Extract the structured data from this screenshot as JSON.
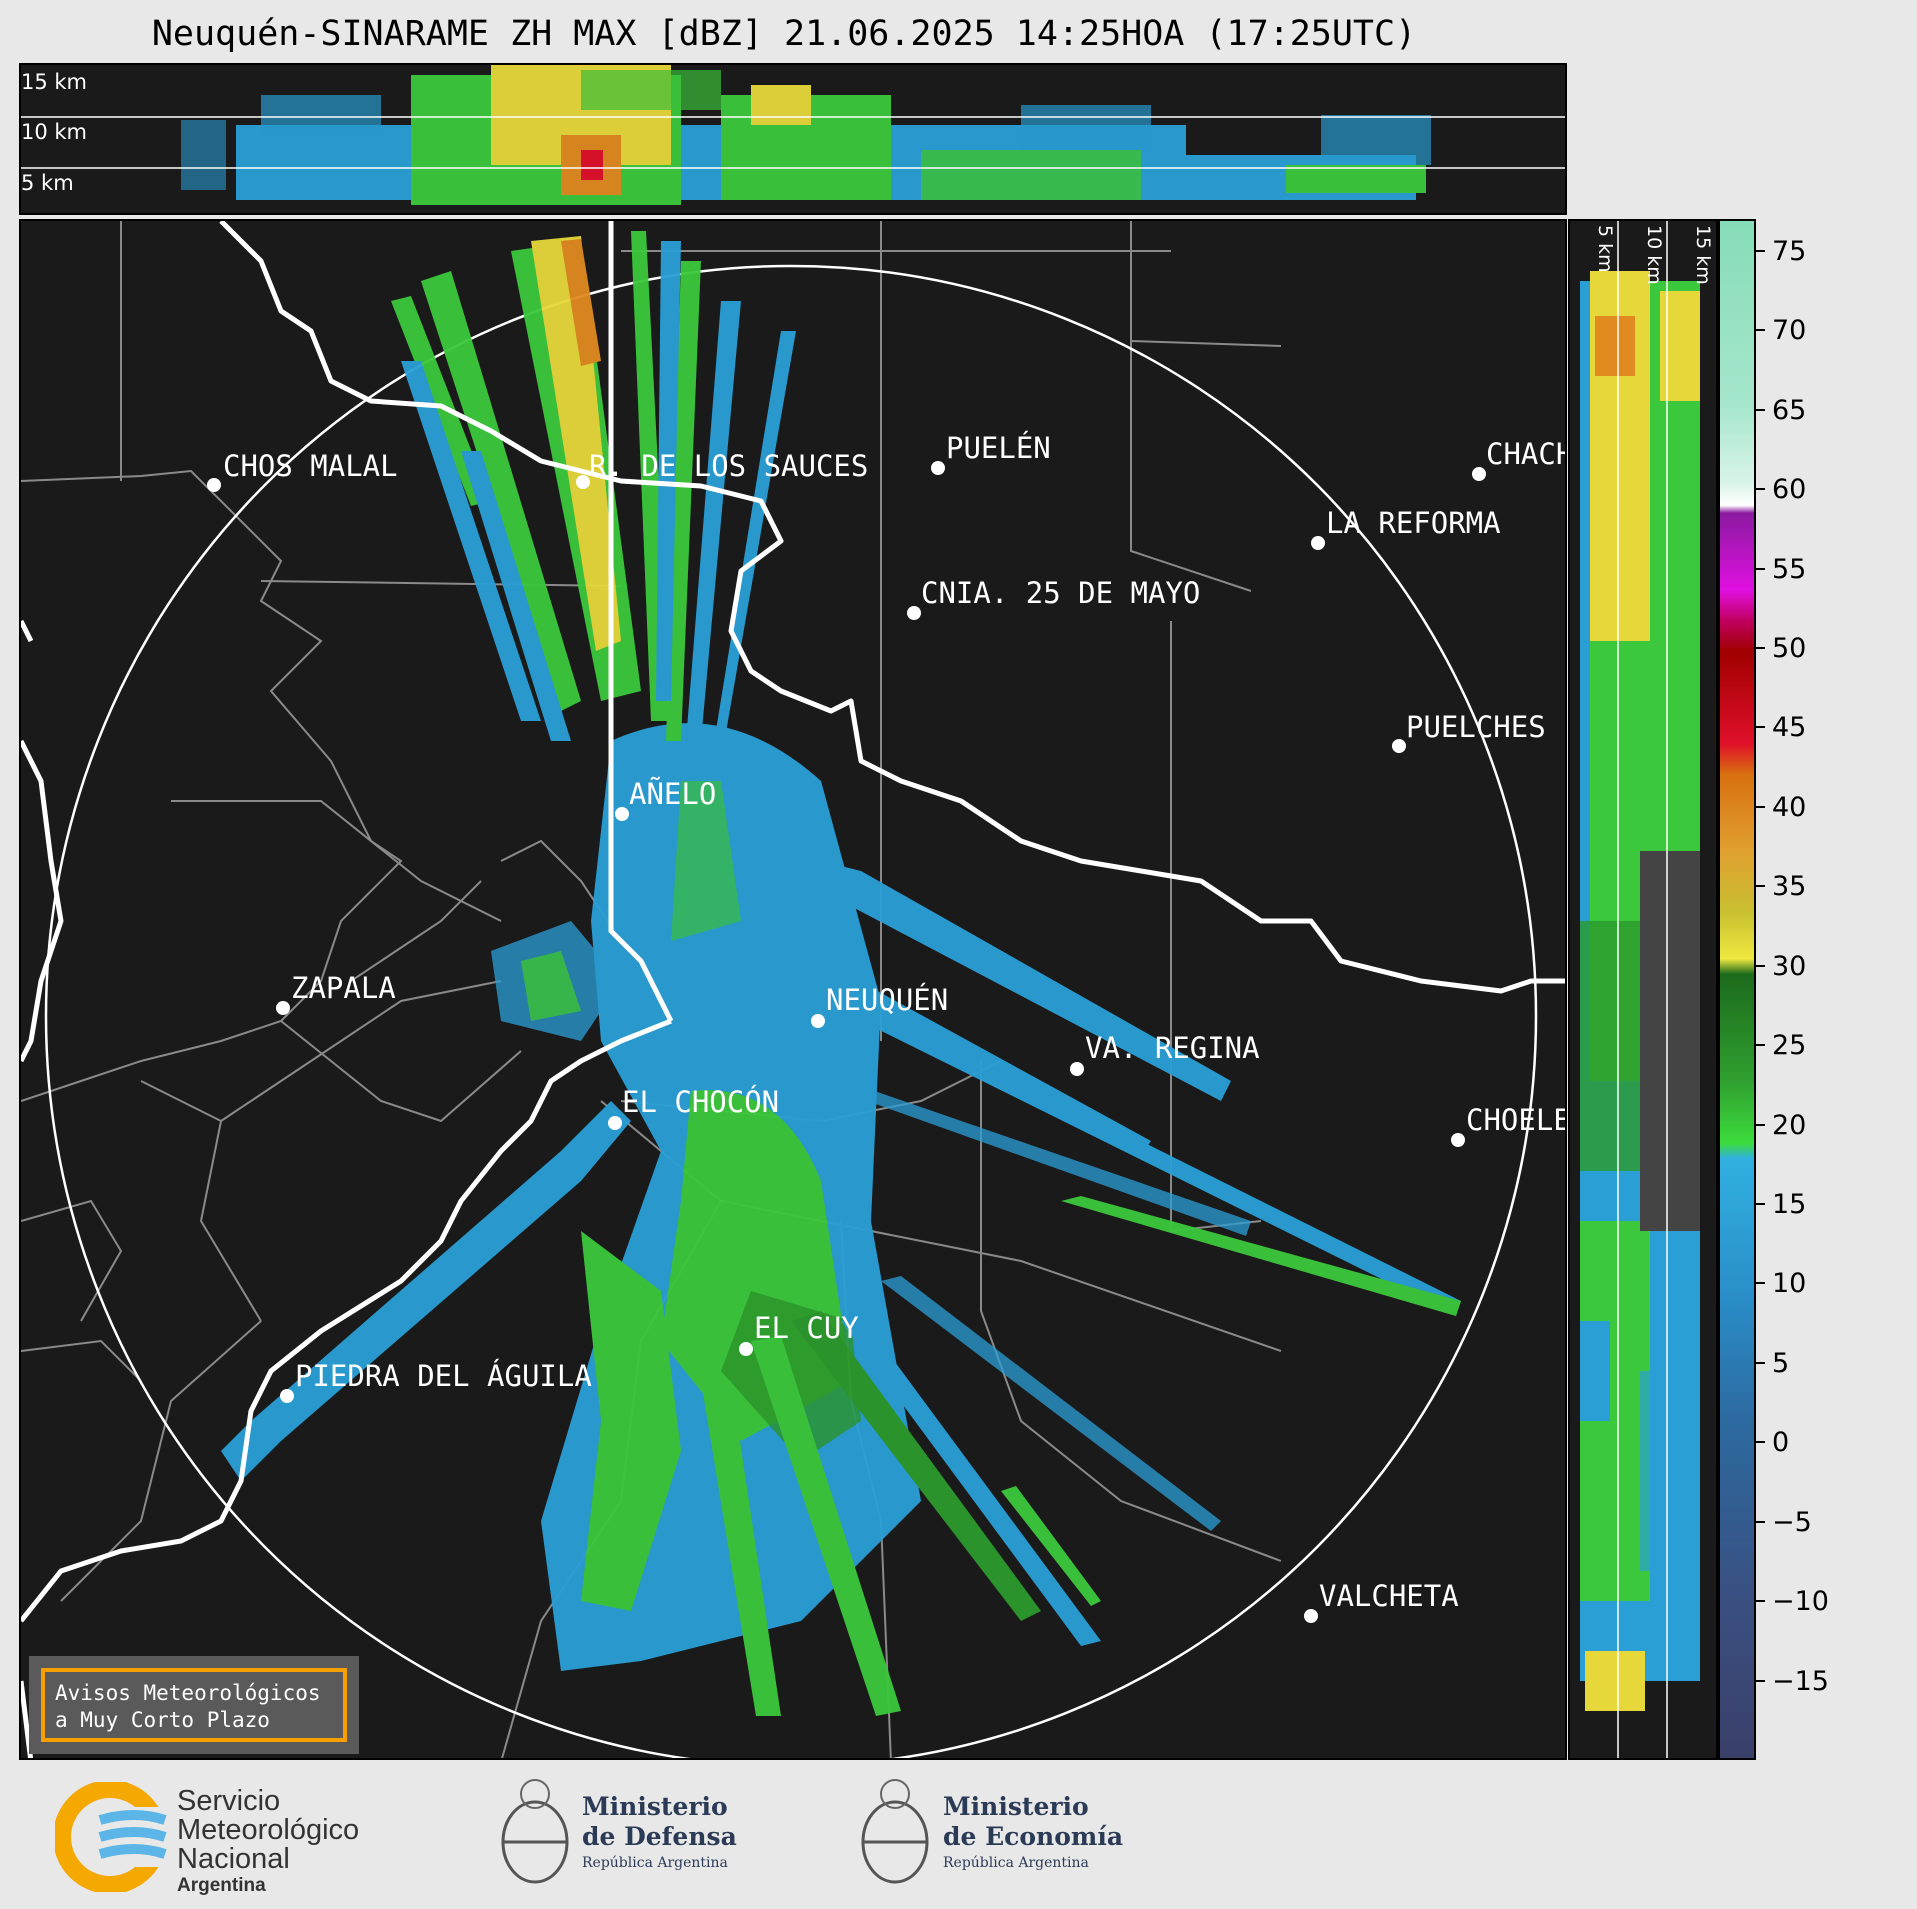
{
  "title": "Neuquén-SINARAME ZH MAX [dBZ] 21.06.2025 14:25HOA (17:25UTC)",
  "top_panel": {
    "height_labels": [
      "15 km",
      "10 km",
      "5 km"
    ]
  },
  "side_panel": {
    "height_labels": [
      "5 km",
      "10 km",
      "15 km"
    ]
  },
  "colorbar": {
    "unit": "dBZ",
    "range": [
      -20,
      77
    ],
    "ticks": [
      "75",
      "70",
      "65",
      "60",
      "55",
      "50",
      "45",
      "40",
      "35",
      "30",
      "25",
      "20",
      "15",
      "10",
      "5",
      "0",
      "−5",
      "−10",
      "−15"
    ],
    "tick_values": [
      75,
      70,
      65,
      60,
      55,
      50,
      45,
      40,
      35,
      30,
      25,
      20,
      15,
      10,
      5,
      0,
      -5,
      -10,
      -15
    ]
  },
  "cities": [
    {
      "name": "CHOS MALAL"
    },
    {
      "name": "R. DE LOS SAUCES"
    },
    {
      "name": "PUELÉN"
    },
    {
      "name": "CHACH"
    },
    {
      "name": "LA REFORMA"
    },
    {
      "name": "CNIA. 25 DE MAYO"
    },
    {
      "name": "PUELCHES"
    },
    {
      "name": "AÑELO"
    },
    {
      "name": "ZAPALA"
    },
    {
      "name": "NEUQUÉN"
    },
    {
      "name": "VA. REGINA"
    },
    {
      "name": "EL CHOCÓN"
    },
    {
      "name": "CHOELE"
    },
    {
      "name": "EL CUY"
    },
    {
      "name": "PIEDRA DEL ÁGUILA"
    },
    {
      "name": "VALCHETA"
    }
  ],
  "warning_box": {
    "line1": "Avisos Meteorológicos",
    "line2": "a Muy Corto Plazo"
  },
  "footer": {
    "smn": {
      "line1": "Servicio",
      "line2": "Meteorológico",
      "line3": "Nacional",
      "line4": "Argentina"
    },
    "defensa": {
      "line1": "Ministerio",
      "line2": "de Defensa",
      "line3": "República Argentina"
    },
    "economia": {
      "line1": "Ministerio",
      "line2": "de Economía",
      "line3": "República Argentina"
    }
  },
  "colors": {
    "map_bg": "#1a1a1a",
    "border_white": "#ffffff",
    "admin_gray": "#8a8a8a",
    "echo_blue": "#2a9fd6",
    "echo_green": "#3cc83c",
    "echo_yellow": "#e6d83a",
    "echo_red": "#e0102a",
    "warning_orange": "#f5a000"
  }
}
